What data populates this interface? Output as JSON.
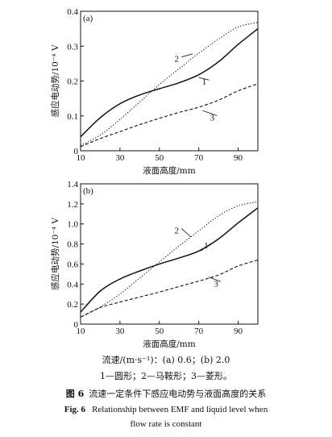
{
  "chart_data": [
    {
      "type": "line",
      "panel_label": "(a)",
      "xlabel": "液面高度/mm",
      "ylabel": "感应电动势/10⁻⁴ V",
      "xlim": [
        10,
        100
      ],
      "ylim": [
        0,
        0.4
      ],
      "xticks": [
        10,
        30,
        50,
        70,
        90
      ],
      "yticks": [
        0,
        0.1,
        0.2,
        0.3,
        0.4
      ],
      "ytick_labels": [
        "0",
        "0.1",
        "0.2",
        "0.3",
        "0.4"
      ],
      "grid": false,
      "series": [
        {
          "name": "1",
          "style": "solid",
          "x": [
            10,
            20,
            30,
            40,
            50,
            60,
            70,
            80,
            90,
            100
          ],
          "y": [
            0.04,
            0.095,
            0.135,
            0.16,
            0.178,
            0.195,
            0.218,
            0.255,
            0.305,
            0.35
          ]
        },
        {
          "name": "2",
          "style": "dotted",
          "x": [
            10,
            20,
            30,
            40,
            50,
            60,
            70,
            80,
            90,
            100
          ],
          "y": [
            0.015,
            0.045,
            0.09,
            0.14,
            0.19,
            0.235,
            0.28,
            0.32,
            0.355,
            0.368
          ]
        },
        {
          "name": "3",
          "style": "dashed",
          "x": [
            10,
            20,
            30,
            40,
            50,
            60,
            70,
            80,
            90,
            100
          ],
          "y": [
            0.012,
            0.035,
            0.055,
            0.075,
            0.093,
            0.11,
            0.125,
            0.145,
            0.172,
            0.192
          ]
        }
      ],
      "curve_labels": [
        {
          "text": "1",
          "x": 74,
          "y": 0.196,
          "tx": 70,
          "ty": 0.21
        },
        {
          "text": "2",
          "x": 60,
          "y": 0.262,
          "tx": 67,
          "ty": 0.278
        },
        {
          "text": "3",
          "x": 78,
          "y": 0.094,
          "tx": 72,
          "ty": 0.115
        }
      ]
    },
    {
      "type": "line",
      "panel_label": "(b)",
      "xlabel": "液面高度/mm",
      "ylabel": "感应电动势/10⁻⁴ V",
      "xlim": [
        10,
        100
      ],
      "ylim": [
        0,
        1.4
      ],
      "xticks": [
        10,
        30,
        50,
        70,
        90
      ],
      "yticks": [
        0,
        0.2,
        0.4,
        0.6,
        0.8,
        1.0,
        1.2,
        1.4
      ],
      "ytick_labels": [
        "0",
        "0.2",
        "0.4",
        "0.6",
        "0.8",
        "1.0",
        "1.2",
        "1.4"
      ],
      "grid": false,
      "series": [
        {
          "name": "1",
          "style": "solid",
          "x": [
            10,
            20,
            30,
            40,
            50,
            60,
            70,
            80,
            90,
            100
          ],
          "y": [
            0.12,
            0.33,
            0.45,
            0.53,
            0.6,
            0.66,
            0.73,
            0.85,
            1.01,
            1.16
          ]
        },
        {
          "name": "2",
          "style": "dotted",
          "x": [
            10,
            20,
            30,
            40,
            50,
            60,
            70,
            80,
            90,
            100
          ],
          "y": [
            0.07,
            0.17,
            0.3,
            0.46,
            0.62,
            0.78,
            0.93,
            1.08,
            1.18,
            1.22
          ]
        },
        {
          "name": "3",
          "style": "dashed",
          "x": [
            10,
            20,
            30,
            40,
            50,
            60,
            70,
            80,
            90,
            100
          ],
          "y": [
            0.07,
            0.165,
            0.22,
            0.27,
            0.32,
            0.375,
            0.43,
            0.49,
            0.58,
            0.64
          ]
        }
      ],
      "curve_labels": [
        {
          "text": "1",
          "x": 75,
          "y": 0.78,
          "tx": 71,
          "ty": 0.73
        },
        {
          "text": "2",
          "x": 60,
          "y": 0.93,
          "tx": 66,
          "ty": 0.87
        },
        {
          "text": "3",
          "x": 80,
          "y": 0.4,
          "tx": 75,
          "ty": 0.47
        }
      ]
    }
  ],
  "caption": {
    "flow_rate_line": "流速/(m·s⁻¹)：(a) 0.6；(b) 2.0",
    "legend_line": "1—圆形；2—马鞍形；3—菱形。",
    "fig_no_cn": "图 6",
    "title_cn": "流速一定条件下感应电动势与液面高度的关系",
    "fig_no_en": "Fig. 6",
    "title_en_1": "Relationship between EMF and liquid level when",
    "title_en_2": "flow rate is constant"
  }
}
